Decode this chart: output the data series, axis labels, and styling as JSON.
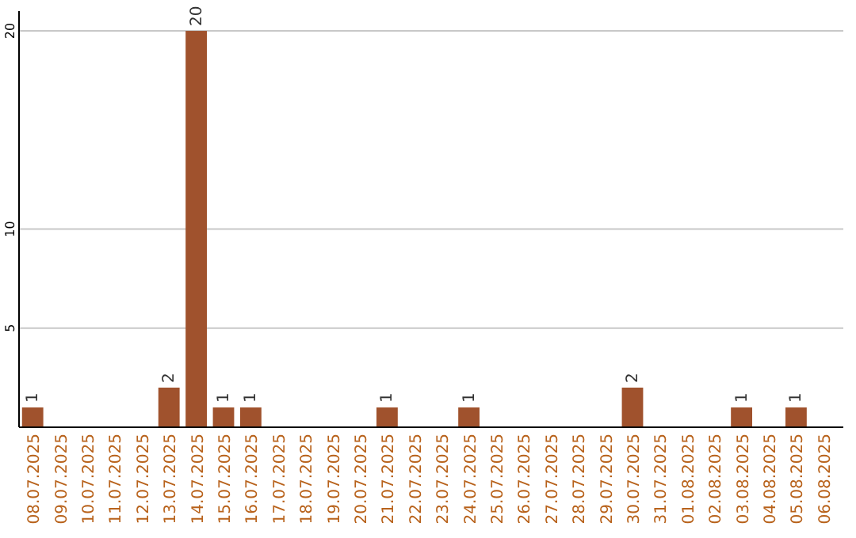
{
  "chart_data": {
    "type": "bar",
    "categories": [
      "08.07.2025",
      "09.07.2025",
      "10.07.2025",
      "11.07.2025",
      "12.07.2025",
      "13.07.2025",
      "14.07.2025",
      "15.07.2025",
      "16.07.2025",
      "17.07.2025",
      "18.07.2025",
      "19.07.2025",
      "20.07.2025",
      "21.07.2025",
      "22.07.2025",
      "23.07.2025",
      "24.07.2025",
      "25.07.2025",
      "26.07.2025",
      "27.07.2025",
      "28.07.2025",
      "29.07.2025",
      "30.07.2025",
      "31.07.2025",
      "01.08.2025",
      "02.08.2025",
      "03.08.2025",
      "04.08.2025",
      "05.08.2025",
      "06.08.2025"
    ],
    "values": [
      1,
      0,
      0,
      0,
      0,
      2,
      20,
      1,
      1,
      0,
      0,
      0,
      0,
      1,
      0,
      0,
      1,
      0,
      0,
      0,
      0,
      0,
      2,
      0,
      0,
      0,
      1,
      0,
      1,
      0
    ],
    "value_labels": [
      "1",
      null,
      null,
      null,
      null,
      "2",
      "20",
      "1",
      "1",
      null,
      null,
      null,
      null,
      "1",
      null,
      null,
      "1",
      null,
      null,
      null,
      null,
      null,
      "2",
      null,
      null,
      null,
      "1",
      null,
      "1",
      null
    ],
    "color": "#a0522d",
    "ylim": [
      0,
      21
    ],
    "yticks": [
      5,
      10,
      20
    ],
    "grid": "y"
  }
}
